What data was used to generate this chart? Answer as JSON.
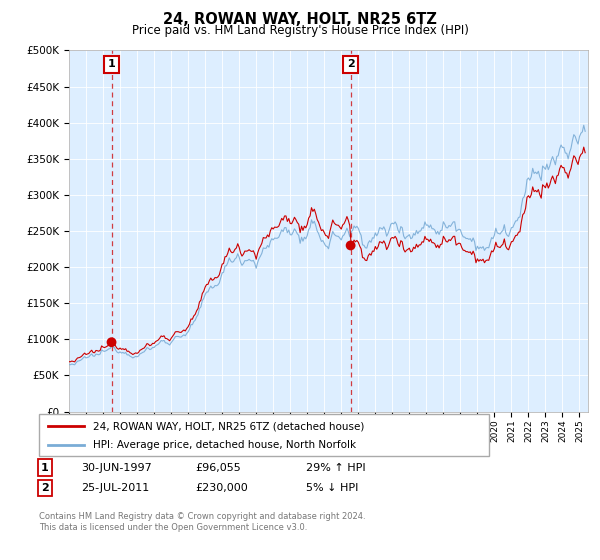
{
  "title": "24, ROWAN WAY, HOLT, NR25 6TZ",
  "subtitle": "Price paid vs. HM Land Registry's House Price Index (HPI)",
  "ylabel_ticks": [
    "£0",
    "£50K",
    "£100K",
    "£150K",
    "£200K",
    "£250K",
    "£300K",
    "£350K",
    "£400K",
    "£450K",
    "£500K"
  ],
  "ylim": [
    0,
    500000
  ],
  "xlim_start": 1995.0,
  "xlim_end": 2025.5,
  "line1_color": "#cc0000",
  "line2_color": "#7aacd6",
  "bg_color": "#ddeeff",
  "purchase1_date": 1997.5,
  "purchase1_price": 96055,
  "purchase2_date": 2011.55,
  "purchase2_price": 230000,
  "legend_line1": "24, ROWAN WAY, HOLT, NR25 6TZ (detached house)",
  "legend_line2": "HPI: Average price, detached house, North Norfolk",
  "note1_date": "30-JUN-1997",
  "note1_price": "£96,055",
  "note1_hpi": "29% ↑ HPI",
  "note2_date": "25-JUL-2011",
  "note2_price": "£230,000",
  "note2_hpi": "5% ↓ HPI",
  "footer": "Contains HM Land Registry data © Crown copyright and database right 2024.\nThis data is licensed under the Open Government Licence v3.0."
}
